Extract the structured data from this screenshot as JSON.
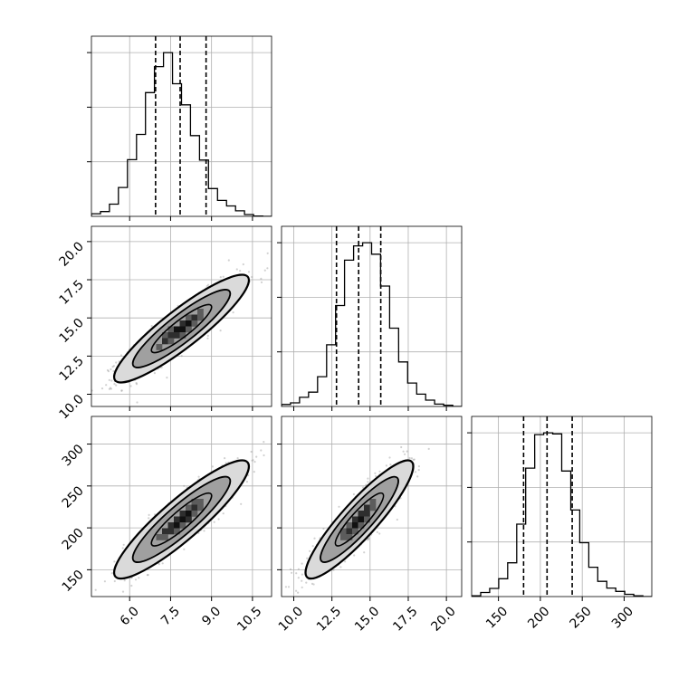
{
  "chart_data": {
    "type": "corner",
    "parameters": [
      "",
      "",
      ""
    ],
    "grid": true,
    "colors": {
      "hist": "#000000",
      "points": "#9a9a9a",
      "grid": "#b0b0b0",
      "contour_levels": [
        "#dadada",
        "#a0a0a0",
        "#6a6a6a",
        "#2a2a2a"
      ]
    },
    "ranges": [
      [
        4.6,
        11.2
      ],
      [
        9.2,
        21.0
      ],
      [
        118,
        333
      ]
    ],
    "ticks": [
      [
        "6.0",
        "7.5",
        "9.0",
        "10.5"
      ],
      [
        "10.0",
        "12.5",
        "15.0",
        "17.5",
        "20.0"
      ],
      [
        "150",
        "200",
        "250",
        "300"
      ]
    ],
    "hist_bins": 20,
    "marginals": [
      {
        "param": 0,
        "counts": [
          0.7,
          1.3,
          3.3,
          7.8,
          15.3,
          22.1,
          33.4,
          40.4,
          44.2,
          35.8,
          30.1,
          21.8,
          15.2,
          7.5,
          4.3,
          2.8,
          1.5,
          0.5,
          0.1,
          0
        ],
        "quantiles": [
          6.95,
          7.85,
          8.8
        ]
      },
      {
        "param": 1,
        "counts": [
          0.5,
          0.9,
          2.3,
          3.6,
          7.5,
          15.5,
          25.4,
          36.8,
          40.4,
          41.2,
          38.3,
          30.3,
          19.7,
          11.2,
          5.9,
          3.1,
          1.6,
          0.6,
          0.3,
          0
        ],
        "quantiles": [
          12.8,
          14.25,
          15.7
        ]
      },
      {
        "param": 2,
        "counts": [
          0.2,
          1.1,
          2.2,
          4.8,
          9.1,
          19.5,
          34.6,
          43.6,
          44.1,
          43.8,
          33.8,
          23.3,
          14.5,
          7.9,
          4.1,
          2.3,
          1.4,
          0.6,
          0.2,
          0
        ],
        "quantiles": [
          180,
          208,
          238
        ]
      }
    ],
    "pairs": [
      {
        "x": 0,
        "y": 1,
        "mean": [
          7.9,
          14.3
        ],
        "sd": [
          1.05,
          1.5
        ],
        "corr": 0.9
      },
      {
        "x": 0,
        "y": 2,
        "mean": [
          7.9,
          210
        ],
        "sd": [
          1.05,
          30
        ],
        "corr": 0.9
      },
      {
        "x": 1,
        "y": 2,
        "mean": [
          14.3,
          210
        ],
        "sd": [
          1.5,
          30
        ],
        "corr": 0.9
      }
    ]
  }
}
